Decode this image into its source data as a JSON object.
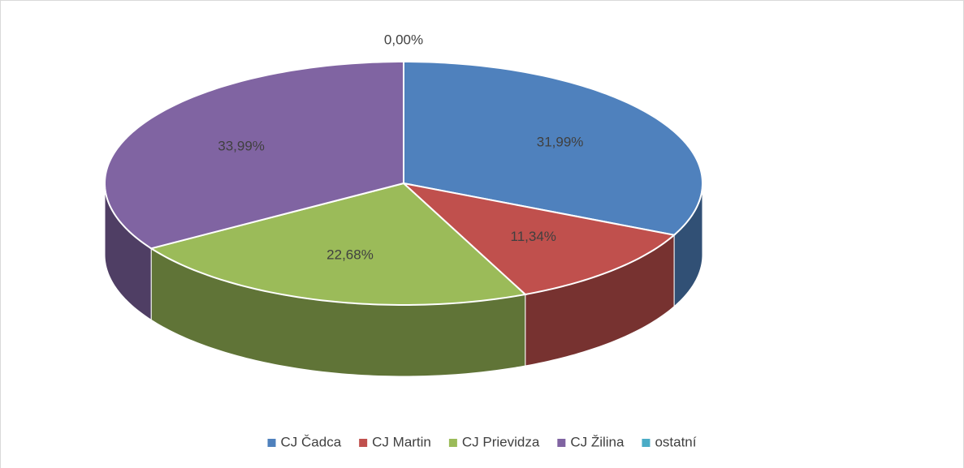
{
  "chart_data": {
    "type": "pie",
    "categories": [
      "CJ Čadca",
      "CJ Martin",
      "CJ Prievidza",
      "CJ Žilina",
      "ostatní"
    ],
    "values": [
      31.99,
      11.34,
      22.68,
      33.99,
      0.0
    ],
    "value_labels": [
      "31,99%",
      "11,34%",
      "22,68%",
      "33,99%",
      "0,00%"
    ],
    "colors": [
      "#4f81bd",
      "#c0504d",
      "#9bbb59",
      "#8064a2",
      "#4bacc6"
    ],
    "legend": "bottom"
  }
}
